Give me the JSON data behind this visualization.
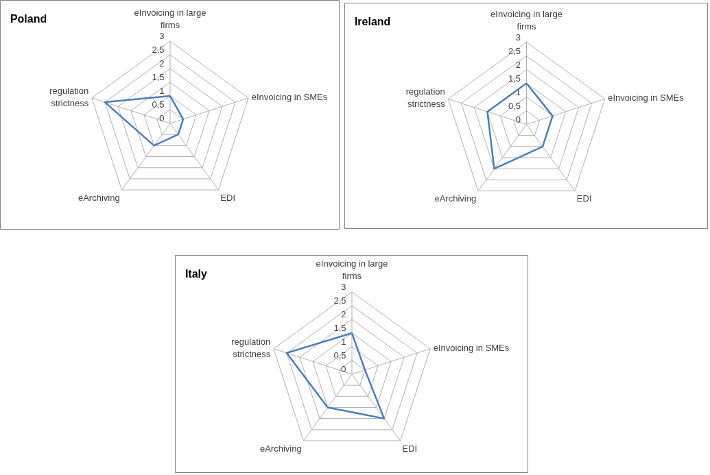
{
  "chart_data": [
    {
      "type": "radar",
      "title": "Poland",
      "categories": [
        "eInvoicing in large firms",
        "eInvoicing in SMEs",
        "EDI",
        "eArchiving",
        "regulation strictness"
      ],
      "series": [
        {
          "color": "#4a7ebb",
          "values": [
            1,
            0.5,
            0.5,
            1,
            2.5
          ]
        }
      ],
      "ylim": [
        0,
        3
      ],
      "yticks": [
        0,
        {
          "value": 0.5,
          "label": "0,5"
        },
        1,
        {
          "value": 1.5,
          "label": "1,5"
        },
        2,
        {
          "value": 2.5,
          "label": "2,5"
        },
        3
      ],
      "grid": true
    },
    {
      "type": "radar",
      "title": "Ireland",
      "categories": [
        "eInvoicing in large firms",
        "eInvoicing in SMEs",
        "EDI",
        "eArchiving",
        "regulation strictness"
      ],
      "series": [
        {
          "color": "#4a7ebb",
          "values": [
            1.5,
            1,
            1,
            2,
            1.5
          ]
        }
      ],
      "ylim": [
        0,
        3
      ],
      "yticks": [
        0,
        {
          "value": 0.5,
          "label": "0,5"
        },
        1,
        {
          "value": 1.5,
          "label": "1,5"
        },
        2,
        {
          "value": 2.5,
          "label": "2,5"
        },
        3
      ],
      "grid": true
    },
    {
      "type": "radar",
      "title": "Italy",
      "categories": [
        "eInvoicing in large firms",
        "eInvoicing in SMEs",
        "EDI",
        "eArchiving",
        "regulation strictness"
      ],
      "series": [
        {
          "color": "#4a7ebb",
          "values": [
            1.5,
            0.5,
            2,
            1.5,
            2.5
          ]
        }
      ],
      "ylim": [
        0,
        3
      ],
      "yticks": [
        0,
        {
          "value": 0.5,
          "label": "0,5"
        },
        1,
        {
          "value": 1.5,
          "label": "1,5"
        },
        2,
        {
          "value": 2.5,
          "label": "2,5"
        },
        3
      ],
      "grid": true
    }
  ]
}
